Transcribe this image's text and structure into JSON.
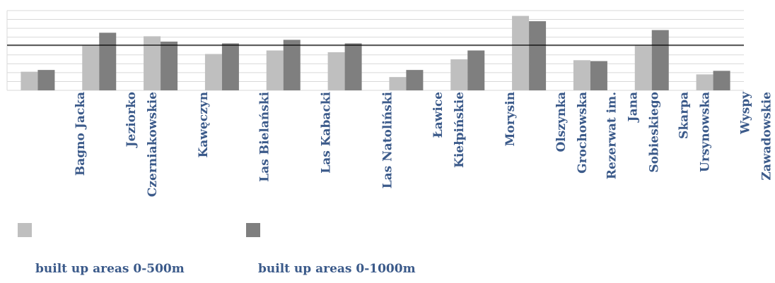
{
  "chart_data": {
    "type": "bar",
    "categories": [
      "Bagno Jacka",
      "Jeziorko\nCzerniakowskie",
      "Kawęczyn",
      "Las Bielański",
      "Las Kabacki",
      "Las Natoliński",
      "Ławice\nKiełpińskie",
      "Morysin",
      "Olszynka\nGrochowska",
      "Rezerwat im.\nJana\nSobieskiego",
      "Skarpa\nUrsynowska",
      "Wyspy\nZawadowskie"
    ],
    "series": [
      {
        "name": "built up areas 0-500m",
        "color": "#bfbfbf",
        "values": [
          2.1,
          5.1,
          6.1,
          4.1,
          4.5,
          4.3,
          1.5,
          3.5,
          8.4,
          3.4,
          5.1,
          1.8
        ]
      },
      {
        "name": "built up areas 0-1000m",
        "color": "#7f7f7f",
        "values": [
          2.3,
          6.5,
          5.5,
          5.3,
          5.7,
          5.3,
          2.3,
          4.5,
          7.8,
          3.3,
          6.8,
          2.2
        ]
      }
    ],
    "ylim": [
      0,
      9
    ],
    "yticks": [
      0,
      1,
      2,
      3,
      4,
      5,
      6,
      7,
      8,
      9
    ],
    "grid": true,
    "reference_line": 5.1
  }
}
